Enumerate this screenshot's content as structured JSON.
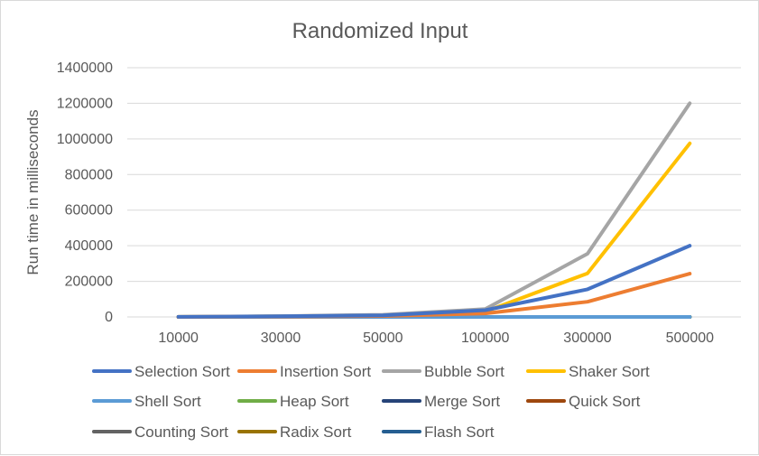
{
  "chart_data": {
    "type": "line",
    "title": "Randomized Input",
    "xlabel": "",
    "ylabel": "Run time in milliseconds",
    "categories": [
      "10000",
      "30000",
      "50000",
      "100000",
      "300000",
      "500000"
    ],
    "ylim": [
      0,
      1400000
    ],
    "yticks": [
      0,
      200000,
      400000,
      600000,
      800000,
      1000000,
      1200000,
      1400000
    ],
    "grid": true,
    "legend_position": "bottom",
    "series": [
      {
        "name": "Selection Sort",
        "color": "#4472c4",
        "values": [
          400,
          3500,
          9000,
          38000,
          155000,
          400000
        ]
      },
      {
        "name": "Insertion Sort",
        "color": "#ed7d31",
        "values": [
          200,
          1800,
          5000,
          20000,
          85000,
          243000
        ]
      },
      {
        "name": "Bubble Sort",
        "color": "#a5a5a5",
        "values": [
          500,
          4500,
          12000,
          44000,
          355000,
          1200000
        ]
      },
      {
        "name": "Shaker Sort",
        "color": "#ffc000",
        "values": [
          400,
          3500,
          10000,
          30000,
          245000,
          975000
        ]
      },
      {
        "name": "Shell Sort",
        "color": "#5b9bd5",
        "values": [
          0,
          0,
          0,
          0,
          0,
          0
        ]
      },
      {
        "name": "Heap Sort",
        "color": "#70ad47",
        "values": [
          0,
          0,
          0,
          0,
          0,
          0
        ]
      },
      {
        "name": "Merge Sort",
        "color": "#264478",
        "values": [
          0,
          0,
          0,
          0,
          0,
          0
        ]
      },
      {
        "name": "Quick Sort",
        "color": "#9e480e",
        "values": [
          0,
          0,
          0,
          0,
          0,
          0
        ]
      },
      {
        "name": "Counting Sort",
        "color": "#636363",
        "values": [
          0,
          0,
          0,
          0,
          0,
          0
        ]
      },
      {
        "name": "Radix Sort",
        "color": "#997300",
        "values": [
          0,
          0,
          0,
          0,
          0,
          0
        ]
      },
      {
        "name": "Flash Sort",
        "color": "#255e91",
        "values": [
          0,
          0,
          0,
          0,
          0,
          0
        ]
      }
    ]
  }
}
